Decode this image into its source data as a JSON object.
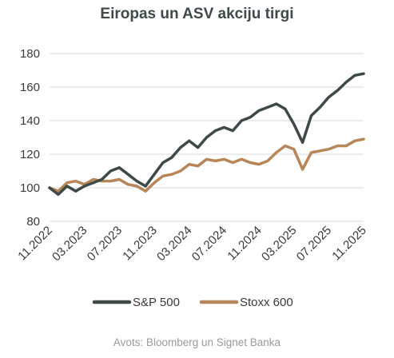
{
  "chart_data": {
    "type": "line",
    "title": "Eiropas un ASV akciju tirgi",
    "ylim": [
      80,
      180
    ],
    "y_ticks": [
      80,
      100,
      120,
      140,
      160,
      180
    ],
    "grid": "horizontal",
    "x_ticks": [
      "11.2022",
      "03.2023",
      "07.2023",
      "11.2023",
      "03.2024",
      "07.2024",
      "11.2024",
      "03.2025",
      "07.2025",
      "11.2025"
    ],
    "legend_position": "bottom",
    "series": [
      {
        "name": "S&P 500",
        "color": "#3d4a45",
        "points": [
          [
            "11.2022",
            100
          ],
          [
            "12.2022",
            96
          ],
          [
            "01.2023",
            101
          ],
          [
            "02.2023",
            98
          ],
          [
            "03.2023",
            101
          ],
          [
            "04.2023",
            103
          ],
          [
            "05.2023",
            105
          ],
          [
            "06.2023",
            110
          ],
          [
            "07.2023",
            112
          ],
          [
            "08.2023",
            108
          ],
          [
            "09.2023",
            104
          ],
          [
            "10.2023",
            101
          ],
          [
            "11.2023",
            108
          ],
          [
            "12.2023",
            115
          ],
          [
            "01.2024",
            118
          ],
          [
            "02.2024",
            124
          ],
          [
            "03.2024",
            128
          ],
          [
            "04.2024",
            124
          ],
          [
            "05.2024",
            130
          ],
          [
            "06.2024",
            134
          ],
          [
            "07.2024",
            136
          ],
          [
            "08.2024",
            134
          ],
          [
            "09.2024",
            140
          ],
          [
            "10.2024",
            142
          ],
          [
            "11.2024",
            146
          ],
          [
            "12.2024",
            148
          ],
          [
            "01.2025",
            150
          ],
          [
            "02.2025",
            147
          ],
          [
            "03.2025",
            138
          ],
          [
            "04.2025",
            127
          ],
          [
            "05.2025",
            143
          ],
          [
            "06.2025",
            148
          ],
          [
            "07.2025",
            154
          ],
          [
            "08.2025",
            158
          ],
          [
            "09.2025",
            163
          ],
          [
            "10.2025",
            167
          ],
          [
            "11.2025",
            168
          ]
        ]
      },
      {
        "name": "Stoxx 600",
        "color": "#b88558",
        "points": [
          [
            "11.2022",
            100
          ],
          [
            "12.2022",
            98
          ],
          [
            "01.2023",
            103
          ],
          [
            "02.2023",
            104
          ],
          [
            "03.2023",
            102
          ],
          [
            "04.2023",
            105
          ],
          [
            "05.2023",
            104
          ],
          [
            "06.2023",
            104
          ],
          [
            "07.2023",
            105
          ],
          [
            "08.2023",
            102
          ],
          [
            "09.2023",
            101
          ],
          [
            "10.2023",
            98
          ],
          [
            "11.2023",
            103
          ],
          [
            "12.2023",
            107
          ],
          [
            "01.2024",
            108
          ],
          [
            "02.2024",
            110
          ],
          [
            "03.2024",
            114
          ],
          [
            "04.2024",
            113
          ],
          [
            "05.2024",
            117
          ],
          [
            "06.2024",
            116
          ],
          [
            "07.2024",
            117
          ],
          [
            "08.2024",
            115
          ],
          [
            "09.2024",
            117
          ],
          [
            "10.2024",
            115
          ],
          [
            "11.2024",
            114
          ],
          [
            "12.2024",
            116
          ],
          [
            "01.2025",
            121
          ],
          [
            "02.2025",
            125
          ],
          [
            "03.2025",
            123
          ],
          [
            "04.2025",
            111
          ],
          [
            "05.2025",
            121
          ],
          [
            "06.2025",
            122
          ],
          [
            "07.2025",
            123
          ],
          [
            "08.2025",
            125
          ],
          [
            "09.2025",
            125
          ],
          [
            "10.2025",
            128
          ],
          [
            "11.2025",
            129
          ]
        ]
      }
    ]
  },
  "source": "Avots: Bloomberg un Signet Banka"
}
